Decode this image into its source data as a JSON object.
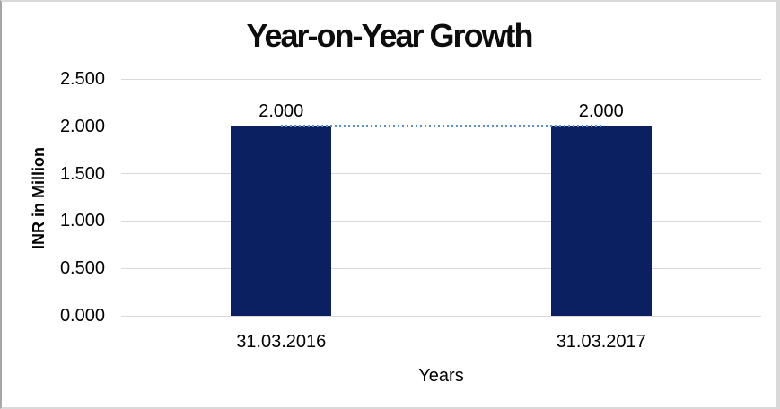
{
  "chart_data": {
    "type": "bar",
    "title": "Year-on-Year Growth",
    "xlabel": "Years",
    "ylabel": "INR in Million",
    "categories": [
      "31.03.2016",
      "31.03.2017"
    ],
    "series": [
      {
        "name": "INR value bars",
        "type": "bar",
        "values": [
          2.0,
          2.0
        ],
        "color": "#0a2060"
      },
      {
        "name": "growth trend dotted connector",
        "type": "line",
        "values": [
          2.0,
          2.0
        ],
        "color": "#5b8fd0",
        "line_style": "dotted"
      }
    ],
    "data_labels": [
      "2.000",
      "2.000"
    ],
    "y_ticks": [
      {
        "value": 2.5,
        "label": "2.500"
      },
      {
        "value": 2.0,
        "label": "2.000"
      },
      {
        "value": 1.5,
        "label": "1.500"
      },
      {
        "value": 1.0,
        "label": "1.000"
      },
      {
        "value": 0.5,
        "label": "0.500"
      },
      {
        "value": 0.0,
        "label": "0.000"
      }
    ],
    "ylim": [
      0,
      2.5
    ],
    "grid": true,
    "legend_position": "none",
    "colors": {
      "gridline": "#d9d9d9",
      "axis_line": "#d9d9d9",
      "text": "#000000",
      "background": "#ffffff"
    }
  }
}
